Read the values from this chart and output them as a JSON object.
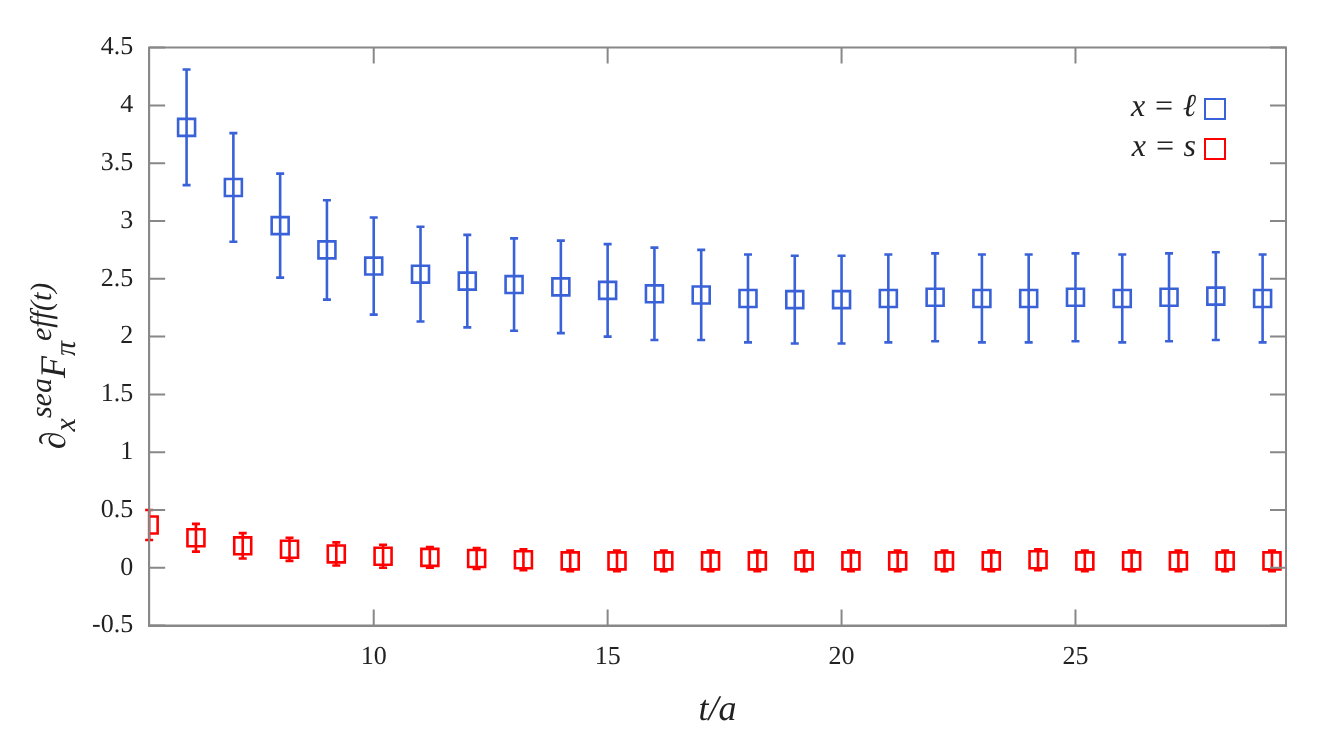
{
  "chart_data": {
    "type": "scatter",
    "xlabel": "t/a",
    "ylabel": "∂$_{x}$$^{sea}$F$_{π}$$^{eff(t)}$",
    "xlim": [
      5.2,
      29.5
    ],
    "xticks": [
      10,
      15,
      20,
      25
    ],
    "ylim": [
      -0.5,
      4.5
    ],
    "yticks": [
      -0.5,
      0,
      0.5,
      1,
      1.5,
      2,
      2.5,
      3,
      3.5,
      4,
      4.5
    ],
    "grid": false,
    "legend": "top right",
    "marker": "square",
    "series": [
      {
        "name": "x = ℓ",
        "color": "#3a62d8",
        "x": [
          6,
          7,
          8,
          9,
          10,
          11,
          12,
          13,
          14,
          15,
          16,
          17,
          18,
          19,
          20,
          21,
          22,
          23,
          24,
          25,
          26,
          27,
          28,
          29
        ],
        "values": [
          3.81,
          3.29,
          2.96,
          2.75,
          2.61,
          2.54,
          2.48,
          2.45,
          2.43,
          2.4,
          2.37,
          2.36,
          2.33,
          2.32,
          2.32,
          2.33,
          2.34,
          2.33,
          2.33,
          2.34,
          2.33,
          2.34,
          2.35,
          2.33
        ],
        "errors": [
          0.5,
          0.47,
          0.45,
          0.43,
          0.42,
          0.41,
          0.4,
          0.4,
          0.4,
          0.4,
          0.4,
          0.39,
          0.38,
          0.38,
          0.38,
          0.38,
          0.38,
          0.38,
          0.38,
          0.38,
          0.38,
          0.38,
          0.38,
          0.38
        ]
      },
      {
        "name": "x = s",
        "color": "#ff0000",
        "x": [
          5.2,
          6.2,
          7.2,
          8.2,
          9.2,
          10.2,
          11.2,
          12.2,
          13.2,
          14.2,
          15.2,
          16.2,
          17.2,
          18.2,
          19.2,
          20.2,
          21.2,
          22.2,
          23.2,
          24.2,
          25.2,
          26.2,
          27.2,
          28.2,
          29.2
        ],
        "values": [
          0.37,
          0.26,
          0.19,
          0.16,
          0.12,
          0.1,
          0.09,
          0.08,
          0.07,
          0.06,
          0.06,
          0.06,
          0.06,
          0.06,
          0.06,
          0.06,
          0.06,
          0.06,
          0.06,
          0.07,
          0.06,
          0.06,
          0.06,
          0.06,
          0.06
        ],
        "errors": [
          0.13,
          0.12,
          0.11,
          0.1,
          0.1,
          0.1,
          0.09,
          0.09,
          0.09,
          0.09,
          0.09,
          0.09,
          0.09,
          0.09,
          0.09,
          0.09,
          0.09,
          0.09,
          0.09,
          0.09,
          0.09,
          0.09,
          0.09,
          0.09,
          0.09
        ]
      }
    ]
  }
}
